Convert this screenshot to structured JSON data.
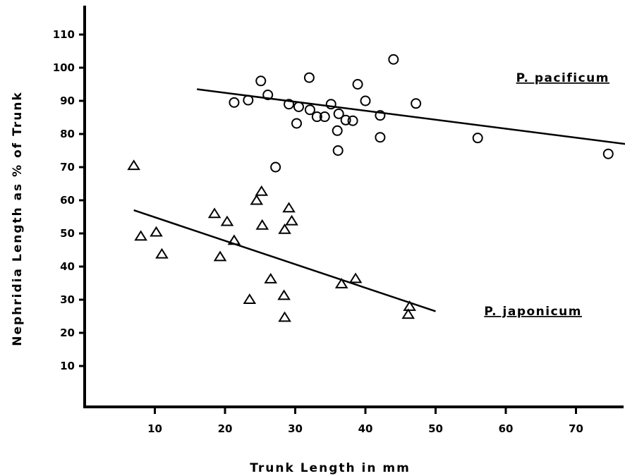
{
  "chart_data": {
    "type": "scatter",
    "xlabel": "Trunk Length in mm",
    "ylabel": "Nephridia Length as % of Trunk",
    "xlim": [
      0,
      77
    ],
    "ylim": [
      0,
      113
    ],
    "x_ticks": [
      10,
      20,
      30,
      40,
      50,
      60,
      70
    ],
    "y_ticks": [
      10,
      20,
      30,
      40,
      50,
      60,
      70,
      80,
      90,
      100,
      110
    ],
    "grid": false,
    "legend": "none",
    "series": [
      {
        "name": "P. pacificum",
        "marker": "circle",
        "points": [
          [
            21.3,
            89.5
          ],
          [
            23.3,
            90.2
          ],
          [
            25.1,
            96.0
          ],
          [
            26.1,
            91.8
          ],
          [
            27.2,
            70.0
          ],
          [
            29.1,
            89.0
          ],
          [
            30.2,
            83.2
          ],
          [
            30.5,
            88.2
          ],
          [
            32.0,
            97.0
          ],
          [
            32.1,
            87.3
          ],
          [
            33.1,
            85.2
          ],
          [
            34.2,
            85.2
          ],
          [
            35.1,
            89.0
          ],
          [
            36.0,
            81.0
          ],
          [
            36.1,
            75.0
          ],
          [
            36.2,
            86.1
          ],
          [
            37.2,
            84.2
          ],
          [
            38.2,
            84.0
          ],
          [
            38.9,
            95.0
          ],
          [
            40.0,
            90.0
          ],
          [
            42.1,
            85.6
          ],
          [
            42.1,
            79.0
          ],
          [
            44.0,
            102.5
          ],
          [
            47.2,
            89.2
          ],
          [
            56.0,
            78.8
          ],
          [
            74.6,
            74.0
          ]
        ],
        "trend_line": {
          "x": [
            16,
            77
          ],
          "y": [
            93.5,
            77.0
          ]
        },
        "label": "P. pacificum"
      },
      {
        "name": "P. japonicum",
        "marker": "triangle",
        "points": [
          [
            7.0,
            70.3
          ],
          [
            8.0,
            49.0
          ],
          [
            10.2,
            50.2
          ],
          [
            11.0,
            43.6
          ],
          [
            18.5,
            55.8
          ],
          [
            19.3,
            42.8
          ],
          [
            20.3,
            53.4
          ],
          [
            21.3,
            47.7
          ],
          [
            23.5,
            29.9
          ],
          [
            24.5,
            59.8
          ],
          [
            25.2,
            62.5
          ],
          [
            25.3,
            52.3
          ],
          [
            26.5,
            36.1
          ],
          [
            28.5,
            51.0
          ],
          [
            28.4,
            31.1
          ],
          [
            28.5,
            24.5
          ],
          [
            29.1,
            57.5
          ],
          [
            29.5,
            53.6
          ],
          [
            36.6,
            34.6
          ],
          [
            38.6,
            36.2
          ],
          [
            46.1,
            25.4
          ],
          [
            46.3,
            27.8
          ]
        ],
        "trend_line": {
          "x": [
            7,
            50
          ],
          "y": [
            57.0,
            26.5
          ]
        },
        "label": "P. japonicum"
      }
    ]
  }
}
